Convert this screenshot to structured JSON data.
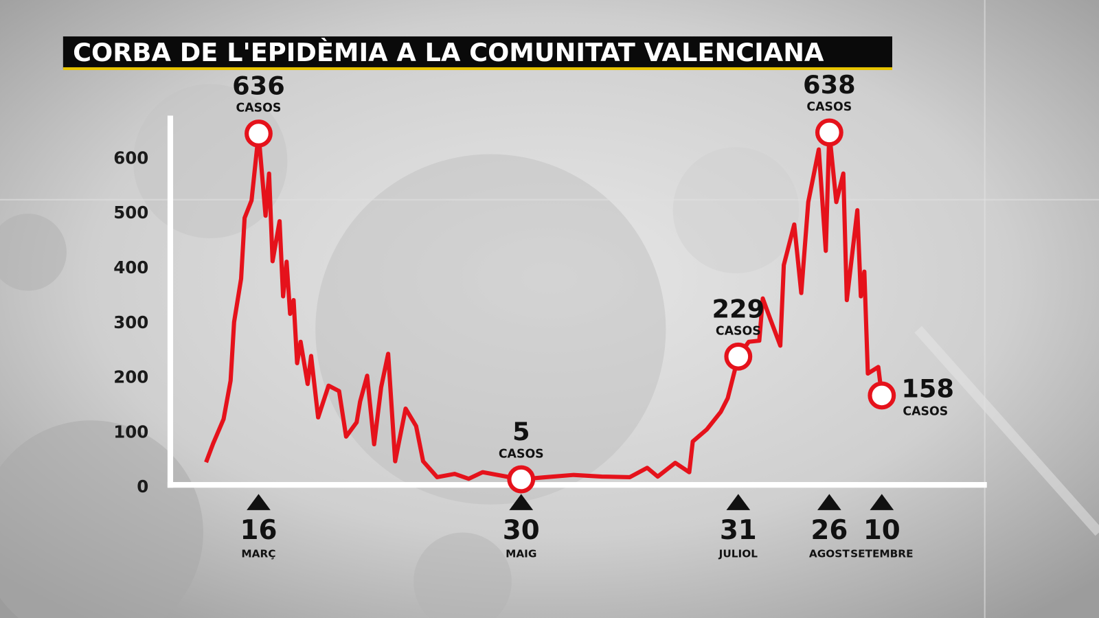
{
  "chart_data": {
    "type": "line",
    "title": "CORBA DE L'EPIDÈMIA A LA COMUNITAT VALENCIANA",
    "x": [
      "03-01",
      "03-03",
      "03-06",
      "03-08",
      "03-09",
      "03-11",
      "03-12",
      "03-14",
      "03-16",
      "03-18",
      "03-19",
      "03-20",
      "03-22",
      "03-23",
      "03-24",
      "03-25",
      "03-26",
      "03-27",
      "03-28",
      "03-30",
      "03-31",
      "04-02",
      "04-05",
      "04-08",
      "04-10",
      "04-13",
      "04-14",
      "04-16",
      "04-18",
      "04-20",
      "04-22",
      "04-24",
      "04-27",
      "04-30",
      "05-02",
      "05-06",
      "05-11",
      "05-15",
      "05-19",
      "05-30",
      "06-06",
      "06-14",
      "06-22",
      "06-30",
      "07-05",
      "07-08",
      "07-13",
      "07-17",
      "07-18",
      "07-22",
      "07-26",
      "07-28",
      "07-31",
      "08-03",
      "08-06",
      "08-07",
      "08-09",
      "08-12",
      "08-13",
      "08-16",
      "08-18",
      "08-20",
      "08-23",
      "08-25",
      "08-26",
      "08-28",
      "08-30",
      "08-31",
      "09-03",
      "09-04",
      "09-05",
      "09-06",
      "09-09",
      "09-10"
    ],
    "series": [
      {
        "name": "Casos",
        "color": "#e5121b",
        "values": [
          36,
          70,
          115,
          185,
          292,
          371,
          482,
          514,
          636,
          486,
          563,
          403,
          476,
          339,
          402,
          307,
          332,
          217,
          256,
          179,
          230,
          118,
          176,
          166,
          83,
          109,
          147,
          194,
          69,
          173,
          234,
          38,
          134,
          102,
          38,
          9,
          15,
          6,
          18,
          5,
          9,
          13,
          10,
          9,
          26,
          10,
          35,
          18,
          74,
          96,
          128,
          153,
          229,
          256,
          258,
          335,
          300,
          249,
          396,
          470,
          345,
          511,
          607,
          422,
          638,
          511,
          563,
          332,
          496,
          339,
          384,
          198,
          210,
          158
        ]
      }
    ],
    "highlights": [
      {
        "x": "03-16",
        "value": 636,
        "note": "CASOS"
      },
      {
        "x": "05-30",
        "value": 5,
        "note": "CASOS"
      },
      {
        "x": "07-31",
        "value": 229,
        "note": "CASOS"
      },
      {
        "x": "08-26",
        "value": 638,
        "note": "CASOS"
      },
      {
        "x": "09-10",
        "value": 158,
        "note": "CASOS"
      }
    ],
    "xlim": [
      "03-01",
      "10-10"
    ],
    "xticks": [
      {
        "value": "03-16",
        "label": "16",
        "month": "MARÇ"
      },
      {
        "value": "05-30",
        "label": "30",
        "month": "MAIG"
      },
      {
        "value": "07-31",
        "label": "31",
        "month": "JULIOL"
      },
      {
        "value": "08-26",
        "label": "26",
        "month": "AGOST"
      },
      {
        "value": "09-10",
        "label": "10",
        "month": "SETEMBRE"
      }
    ],
    "ylim": [
      0,
      670
    ],
    "yticks": [
      0,
      100,
      200,
      300,
      400,
      500,
      600
    ]
  }
}
